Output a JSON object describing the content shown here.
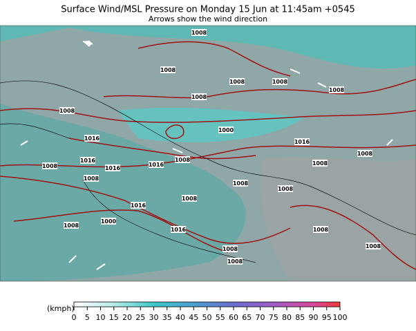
{
  "header": {
    "title": "Surface Wind/MSL Pressure on Monday 15 Jun at 11:45am +0545",
    "subtitle": "Arrows show the wind direction"
  },
  "isobar_labels": [
    1008,
    1008,
    1008,
    1008,
    1008,
    1008,
    1000,
    1016,
    1016,
    1008,
    1008,
    1016,
    1016,
    1016,
    1008,
    1008,
    1008,
    1008,
    1008,
    1008,
    1016,
    1000,
    1008,
    1016,
    1008,
    1008,
    1008,
    1008,
    1008
  ],
  "legend": {
    "unit": "(kmph)",
    "ticks": [
      0,
      5,
      10,
      15,
      20,
      25,
      30,
      35,
      40,
      45,
      50,
      55,
      60,
      65,
      70,
      75,
      80,
      85,
      90,
      95,
      100
    ]
  }
}
